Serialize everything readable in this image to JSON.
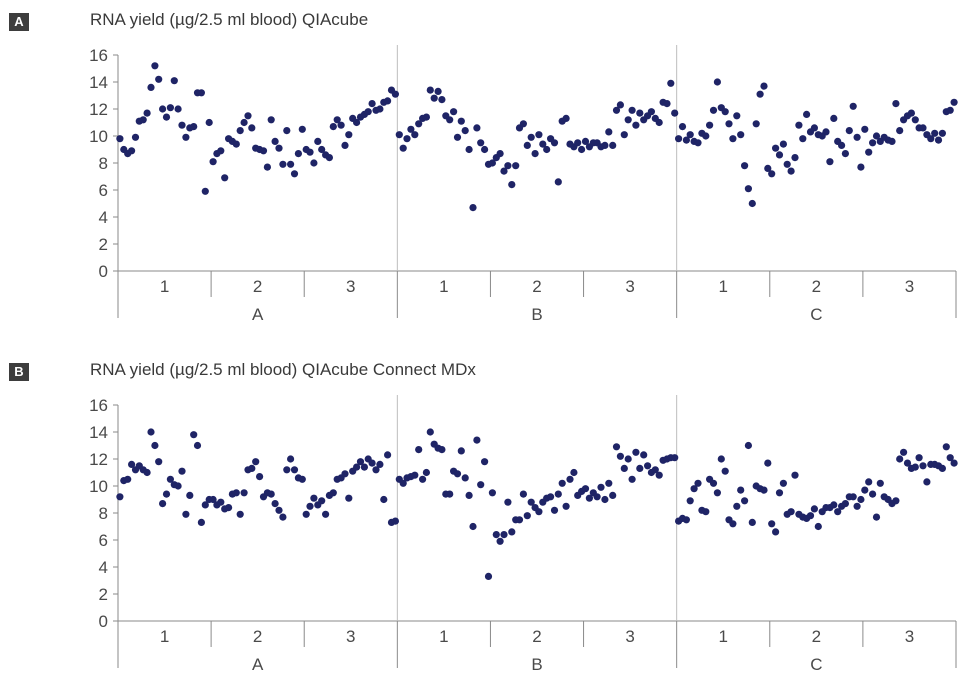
{
  "chart_data": [
    {
      "panel": "A",
      "type": "scatter",
      "title": "RNA yield (µg/2.5 ml blood) QIAcube",
      "ylim": [
        0,
        16
      ],
      "yticks": [
        0,
        2,
        4,
        6,
        8,
        10,
        12,
        14,
        16
      ],
      "groups": [
        "A",
        "B",
        "C"
      ],
      "subgroups": [
        "1",
        "2",
        "3"
      ],
      "color": "#1f2466",
      "points": [
        [
          9.8,
          9.0,
          8.7,
          8.9,
          9.9,
          11.1,
          11.2,
          11.7,
          13.6,
          15.2,
          14.2,
          12.0,
          11.4,
          12.1,
          14.1,
          12.0,
          10.8,
          9.9,
          10.6,
          10.7,
          13.2,
          13.2,
          5.9,
          11.0
        ],
        [
          8.1,
          8.7,
          8.9,
          6.9,
          9.8,
          9.6,
          9.4,
          10.4,
          11.0,
          11.5,
          10.6,
          9.1,
          9.0,
          8.9,
          7.7,
          11.2,
          9.6,
          9.1,
          7.9,
          10.4,
          7.9,
          7.2,
          8.7,
          10.5
        ],
        [
          9.0,
          8.8,
          8.0,
          9.6,
          9.0,
          8.6,
          8.4,
          10.7,
          11.2,
          10.8,
          9.3,
          10.1,
          11.3,
          11.0,
          11.4,
          11.6,
          11.8,
          12.4,
          11.9,
          12.0,
          12.5,
          12.6,
          13.4,
          13.1
        ],
        [
          10.1,
          9.1,
          9.8,
          10.5,
          10.1,
          10.9,
          11.3,
          11.4,
          13.4,
          12.8,
          13.3,
          12.7,
          11.5,
          11.2,
          11.8,
          9.9,
          11.1,
          10.4,
          9.0,
          4.7,
          10.6,
          9.5,
          9.0,
          7.9
        ],
        [
          8.0,
          8.4,
          8.7,
          7.4,
          7.8,
          6.4,
          7.8,
          10.6,
          10.9,
          9.3,
          9.9,
          8.7,
          10.1,
          9.4,
          9.0,
          9.8,
          9.5,
          6.6,
          11.1,
          11.3,
          9.4,
          9.2,
          9.5,
          9.0
        ],
        [
          9.6,
          9.2,
          9.5,
          9.5,
          9.2,
          9.3,
          10.3,
          9.3,
          11.9,
          12.3,
          10.1,
          11.2,
          11.9,
          10.8,
          11.7,
          11.2,
          11.5,
          11.8,
          11.3,
          11.0,
          12.5,
          12.4,
          13.9,
          11.7
        ],
        [
          9.8,
          10.7,
          9.7,
          10.1,
          9.6,
          9.5,
          10.2,
          10.0,
          10.8,
          11.9,
          14.0,
          12.1,
          11.8,
          10.9,
          9.8,
          11.5,
          10.1,
          7.8,
          6.1,
          5.0,
          10.9,
          13.1,
          13.7,
          7.6
        ],
        [
          7.2,
          9.1,
          8.6,
          9.4,
          7.9,
          7.4,
          8.4,
          10.8,
          9.8,
          11.6,
          10.3,
          10.6,
          10.1,
          10.0,
          10.3,
          8.1,
          11.3,
          9.6,
          9.3,
          8.7,
          10.4,
          12.2,
          9.9,
          7.7
        ],
        [
          10.5,
          8.8,
          9.5,
          10.0,
          9.6,
          9.9,
          9.7,
          9.6,
          12.4,
          10.4,
          11.2,
          11.5,
          11.7,
          11.2,
          10.6,
          10.6,
          10.1,
          9.8,
          10.2,
          9.7,
          10.2,
          11.8,
          11.9,
          12.5
        ]
      ]
    },
    {
      "panel": "B",
      "type": "scatter",
      "title": "RNA yield (µg/2.5 ml blood) QIAcube Connect MDx",
      "ylim": [
        0,
        16
      ],
      "yticks": [
        0,
        2,
        4,
        6,
        8,
        10,
        12,
        14,
        16
      ],
      "groups": [
        "A",
        "B",
        "C"
      ],
      "subgroups": [
        "1",
        "2",
        "3"
      ],
      "color": "#1f2466",
      "points": [
        [
          9.2,
          10.4,
          10.5,
          11.6,
          11.2,
          11.5,
          11.2,
          11.0,
          14.0,
          13.0,
          11.8,
          8.7,
          9.4,
          10.5,
          10.1,
          10.0,
          11.1,
          7.9,
          9.3,
          13.8,
          13.0,
          7.3,
          8.6,
          9.0
        ],
        [
          9.0,
          8.6,
          8.8,
          8.3,
          8.4,
          9.4,
          9.5,
          7.9,
          9.5,
          11.2,
          11.3,
          11.8,
          10.7,
          9.2,
          9.5,
          9.4,
          8.7,
          8.2,
          7.7,
          11.2,
          12.0,
          11.2,
          10.6,
          10.5
        ],
        [
          7.9,
          8.5,
          9.1,
          8.6,
          8.9,
          7.9,
          9.3,
          9.5,
          10.5,
          10.6,
          10.9,
          9.1,
          11.1,
          11.4,
          11.8,
          11.4,
          12.0,
          11.7,
          11.2,
          11.6,
          9.0,
          12.3,
          7.3,
          7.4
        ],
        [
          10.5,
          10.2,
          10.6,
          10.7,
          10.8,
          12.7,
          10.5,
          11.0,
          14.0,
          13.1,
          12.8,
          12.7,
          9.4,
          9.4,
          11.1,
          10.9,
          12.6,
          10.6,
          9.3,
          7.0,
          13.4,
          10.1,
          11.8,
          3.3
        ],
        [
          9.5,
          6.4,
          5.9,
          6.4,
          8.8,
          6.6,
          7.5,
          7.5,
          9.4,
          7.8,
          8.8,
          8.4,
          8.1,
          8.8,
          9.1,
          9.2,
          8.2,
          9.4,
          10.2,
          8.5,
          10.5,
          11.0,
          9.3,
          9.6
        ],
        [
          9.8,
          9.1,
          9.5,
          9.2,
          9.9,
          9.0,
          10.2,
          9.3,
          12.9,
          12.2,
          11.3,
          12.0,
          10.5,
          12.5,
          11.3,
          12.3,
          11.5,
          11.0,
          11.2,
          10.8,
          11.9,
          12.0,
          12.1,
          12.1
        ],
        [
          7.4,
          7.6,
          7.5,
          8.9,
          9.8,
          10.2,
          8.2,
          8.1,
          10.5,
          10.2,
          9.5,
          12.0,
          11.1,
          7.5,
          7.2,
          8.5,
          9.7,
          8.9,
          13.0,
          7.3,
          10.0,
          9.8,
          9.7,
          11.7
        ],
        [
          7.2,
          6.6,
          9.5,
          10.2,
          7.9,
          8.1,
          10.8,
          7.9,
          7.7,
          7.6,
          7.8,
          8.3,
          7.0,
          8.1,
          8.4,
          8.4,
          8.6,
          8.1,
          8.5,
          8.7,
          9.2,
          9.2,
          8.5,
          9.0
        ],
        [
          9.7,
          10.3,
          9.4,
          7.7,
          10.2,
          9.2,
          9.0,
          8.7,
          8.9,
          12.0,
          12.5,
          11.7,
          11.3,
          11.4,
          12.1,
          11.5,
          10.3,
          11.6,
          11.6,
          11.5,
          11.3,
          12.9,
          12.1,
          11.7
        ]
      ]
    }
  ]
}
